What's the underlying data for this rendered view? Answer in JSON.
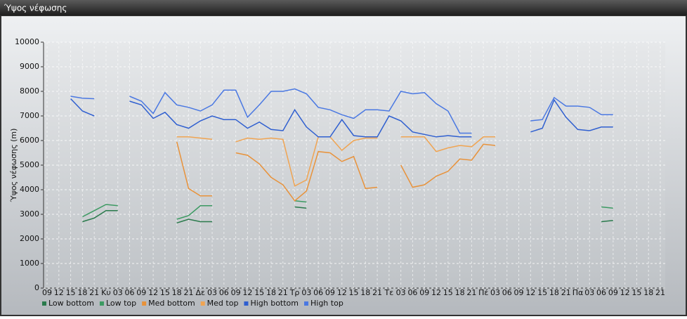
{
  "chart_data": {
    "type": "line",
    "title": "Ύψος νέφωσης",
    "y_label": "Ύψος νέφωσης (m)",
    "categories": [
      "09",
      "12",
      "15",
      "18",
      "21",
      "Κυ",
      "03",
      "06",
      "09",
      "12",
      "15",
      "18",
      "21",
      "Δε",
      "03",
      "06",
      "09",
      "12",
      "15",
      "18",
      "21",
      "Τρ",
      "03",
      "06",
      "09",
      "12",
      "15",
      "18",
      "21",
      "Τε",
      "03",
      "06",
      "09",
      "12",
      "15",
      "18",
      "21",
      "Πέ",
      "03",
      "06",
      "09",
      "12",
      "15",
      "18",
      "21",
      "Πα",
      "03",
      "06",
      "09",
      "12",
      "15",
      "18",
      "21"
    ],
    "ylim": [
      0,
      10000
    ],
    "yticks": [
      0,
      1000,
      2000,
      3000,
      4000,
      5000,
      6000,
      7000,
      8000,
      9000,
      10000
    ],
    "grid": true,
    "legend": "bottom-left",
    "series": [
      {
        "name": "Low bottom",
        "color": "#2a7a4c",
        "values": [
          null,
          null,
          null,
          2700,
          2850,
          3150,
          3150,
          null,
          null,
          null,
          null,
          2650,
          2800,
          2700,
          2700,
          null,
          null,
          null,
          null,
          null,
          null,
          3300,
          3250,
          null,
          null,
          null,
          null,
          null,
          null,
          null,
          null,
          null,
          null,
          null,
          null,
          null,
          null,
          null,
          null,
          null,
          null,
          null,
          null,
          null,
          null,
          null,
          null,
          2700,
          2750,
          null,
          null,
          null,
          null
        ]
      },
      {
        "name": "Low top",
        "color": "#3c9a62",
        "values": [
          null,
          null,
          null,
          2900,
          3150,
          3400,
          3350,
          null,
          null,
          null,
          null,
          2800,
          2950,
          3350,
          3350,
          null,
          null,
          null,
          null,
          null,
          null,
          3550,
          3500,
          null,
          null,
          null,
          null,
          null,
          null,
          null,
          null,
          null,
          null,
          null,
          null,
          null,
          null,
          null,
          null,
          null,
          null,
          null,
          null,
          null,
          null,
          null,
          null,
          3300,
          3250,
          null,
          null,
          null,
          null
        ]
      },
      {
        "name": "Med bottom",
        "color": "#e8923a",
        "values": [
          null,
          null,
          null,
          null,
          null,
          null,
          null,
          null,
          null,
          null,
          null,
          5950,
          4050,
          3750,
          3750,
          null,
          5500,
          5400,
          5050,
          4500,
          4200,
          3550,
          3950,
          5550,
          5500,
          5150,
          5350,
          4050,
          4100,
          null,
          5000,
          4100,
          4200,
          4550,
          4750,
          5250,
          5200,
          5850,
          5800,
          null,
          null,
          null,
          null,
          null,
          null,
          null,
          null,
          null,
          null,
          null,
          null,
          null,
          null
        ]
      },
      {
        "name": "Med top",
        "color": "#f0a452",
        "values": [
          null,
          null,
          null,
          null,
          null,
          null,
          null,
          null,
          null,
          null,
          null,
          6150,
          6150,
          6100,
          6050,
          null,
          5950,
          6100,
          6050,
          6100,
          6050,
          4150,
          4400,
          6150,
          6150,
          5600,
          6000,
          6100,
          6100,
          null,
          6150,
          6150,
          6150,
          5550,
          5700,
          5800,
          5750,
          6150,
          6150,
          null,
          null,
          null,
          null,
          null,
          null,
          null,
          null,
          null,
          null,
          null,
          null,
          null,
          null
        ]
      },
      {
        "name": "High bottom",
        "color": "#2f5fd0",
        "values": [
          null,
          null,
          7700,
          7200,
          7000,
          null,
          null,
          7600,
          7450,
          6900,
          7150,
          6650,
          6500,
          6800,
          7000,
          6850,
          6850,
          6500,
          6750,
          6450,
          6400,
          7250,
          6550,
          6150,
          6150,
          6850,
          6200,
          6150,
          6150,
          7000,
          6800,
          6350,
          6250,
          6150,
          6200,
          6150,
          6150,
          null,
          null,
          null,
          null,
          6350,
          6500,
          7650,
          6950,
          6450,
          6400,
          6550,
          6550,
          null,
          null,
          null,
          null
        ]
      },
      {
        "name": "High top",
        "color": "#4a78e2",
        "values": [
          null,
          null,
          7800,
          7720,
          7700,
          null,
          null,
          7800,
          7600,
          7100,
          7950,
          7450,
          7350,
          7200,
          7450,
          8050,
          8050,
          6950,
          7450,
          8000,
          8000,
          8100,
          7900,
          7350,
          7250,
          7050,
          6900,
          7250,
          7250,
          7200,
          8000,
          7900,
          7950,
          7500,
          7200,
          6300,
          6300,
          null,
          null,
          null,
          null,
          6800,
          6850,
          7750,
          7400,
          7400,
          7350,
          7050,
          7050,
          null,
          null,
          null,
          null
        ]
      }
    ]
  }
}
